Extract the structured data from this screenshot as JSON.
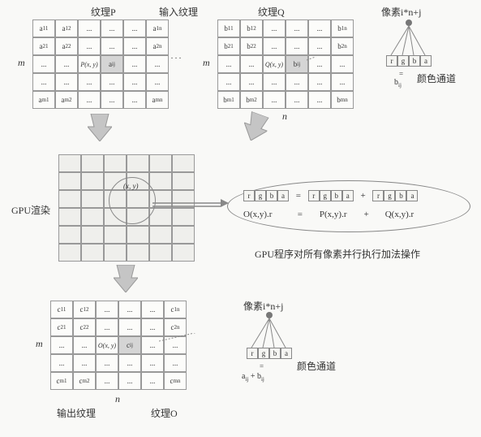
{
  "titles": {
    "textureP": "纹理P",
    "inputTexture": "输入纹理",
    "textureQ": "纹理Q",
    "pixelIJ": "像素i*n+j",
    "colorChannel": "颜色通道",
    "gpuRender": "GPU渲染",
    "gpuProgram": "GPU程序对所有像素并行执行加法操作",
    "outputTexture": "输出纹理",
    "textureO": "纹理O",
    "m": "m",
    "n": "n"
  },
  "gridP": {
    "prefix": "a",
    "fnLabel": "P(x, y)"
  },
  "gridQ": {
    "prefix": "b",
    "fnLabel": "Q(x, y)"
  },
  "gridO": {
    "prefix": "c",
    "fnLabel": "O(x, y)"
  },
  "midCoord": "(x, y)",
  "rgba": [
    "r",
    "g",
    "b",
    "a"
  ],
  "formulaLine": {
    "eq": "=",
    "plus": "+",
    "lhs": "O(x,y).r",
    "t1": "P(x,y).r",
    "t2": "Q(x,y).r"
  },
  "labels": {
    "bij": "bᵢⱼ",
    "aijbij": "aᵢⱼ + bᵢⱼ",
    "eqsmall": "="
  },
  "style": {
    "gridCell": {
      "w": 28,
      "h": 22
    },
    "cellBorder": "#999",
    "hl": "#d5d5d5",
    "arrow": "#b0b0b0"
  }
}
